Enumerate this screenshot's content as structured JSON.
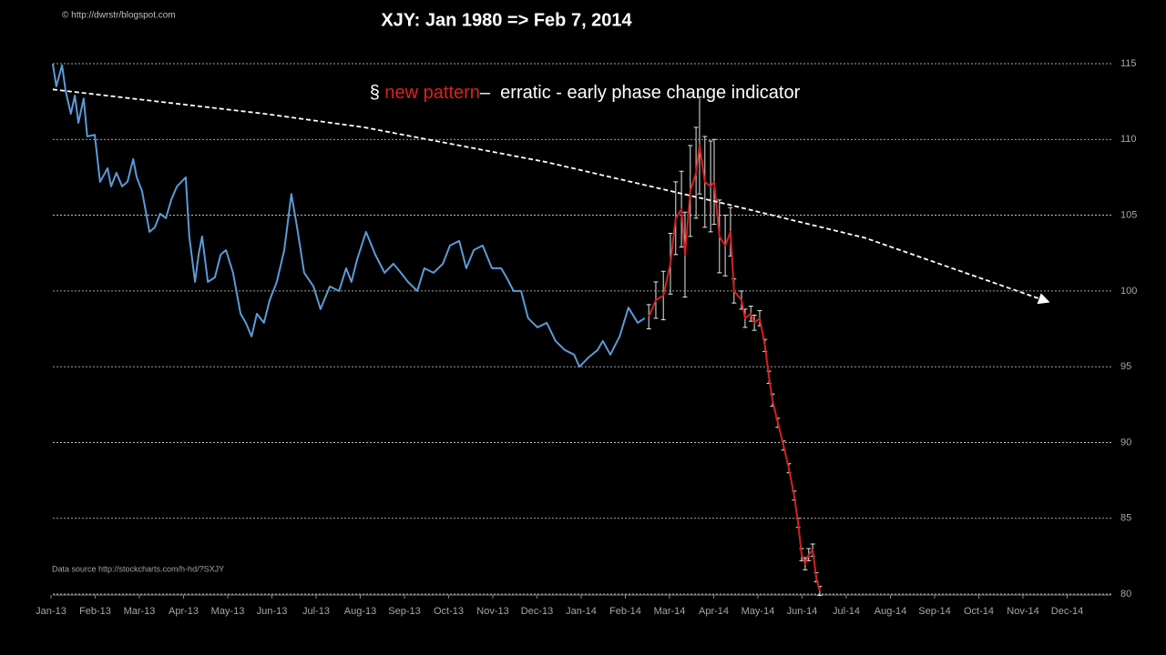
{
  "chart_data": {
    "type": "line",
    "title": "XJY: Jan 1980  => Feb 7, 2014",
    "annotation": [
      "§ ",
      "new pattern",
      "–  erratic - early phase change indicator"
    ],
    "annotation_colors": [
      "#ffffff",
      "#e02020",
      "#ffffff"
    ],
    "copyright": "© http://dwrstr/blogspot.com",
    "source": "Data source http://stockcharts.com/h-hd/?SXJY",
    "xlim": [
      0,
      24
    ],
    "xticks": [
      {
        "value": 0,
        "label": "Jan-13"
      },
      {
        "value": 1,
        "label": "Feb-13"
      },
      {
        "value": 2,
        "label": "Mar-13"
      },
      {
        "value": 3,
        "label": "Apr-13"
      },
      {
        "value": 4,
        "label": "May-13"
      },
      {
        "value": 5,
        "label": "Jun-13"
      },
      {
        "value": 6,
        "label": "Jul-13"
      },
      {
        "value": 7,
        "label": "Aug-13"
      },
      {
        "value": 8,
        "label": "Sep-13"
      },
      {
        "value": 9,
        "label": "Oct-13"
      },
      {
        "value": 10,
        "label": "Nov-13"
      },
      {
        "value": 11,
        "label": "Dec-13"
      },
      {
        "value": 12,
        "label": "Jan-14"
      },
      {
        "value": 13,
        "label": "Feb-14"
      },
      {
        "value": 14,
        "label": "Mar-14"
      },
      {
        "value": 15,
        "label": "Apr-14"
      },
      {
        "value": 16,
        "label": "May-14"
      },
      {
        "value": 17,
        "label": "Jun-14"
      },
      {
        "value": 18,
        "label": "Jul-14"
      },
      {
        "value": 19,
        "label": "Aug-14"
      },
      {
        "value": 20,
        "label": "Sep-14"
      },
      {
        "value": 21,
        "label": "Oct-14"
      },
      {
        "value": 22,
        "label": "Nov-14"
      },
      {
        "value": 23,
        "label": "Dec-14"
      }
    ],
    "ylim": [
      80,
      115
    ],
    "yticks": [
      80,
      85,
      90,
      95,
      100,
      105,
      110,
      115
    ],
    "grid": true,
    "series": [
      {
        "color": "#5b9bd5",
        "style": "solid",
        "x": [
          0.04,
          0.12,
          0.25,
          0.33,
          0.45,
          0.54,
          0.62,
          0.74,
          0.82,
          0.99,
          1.11,
          1.28,
          1.36,
          1.48,
          1.61,
          1.73,
          1.86,
          1.94,
          2.06,
          2.23,
          2.35,
          2.47,
          2.6,
          2.72,
          2.85,
          3.05,
          3.13,
          3.26,
          3.34,
          3.42,
          3.55,
          3.71,
          3.84,
          3.96,
          4.12,
          4.29,
          4.41,
          4.54,
          4.66,
          4.82,
          4.95,
          5.11,
          5.28,
          5.44,
          5.57,
          5.73,
          5.94,
          6.1,
          6.31,
          6.52,
          6.68,
          6.8,
          6.93,
          7.13,
          7.34,
          7.55,
          7.75,
          7.92,
          8.08,
          8.29,
          8.45,
          8.66,
          8.87,
          9.03,
          9.24,
          9.4,
          9.57,
          9.77,
          9.98,
          10.19,
          10.31,
          10.47,
          10.64,
          10.8,
          11.01,
          11.22,
          11.42,
          11.63,
          11.84,
          11.96,
          12.16,
          12.37,
          12.49,
          12.66,
          12.87,
          13.07,
          13.28,
          13.44
        ],
        "values": [
          115,
          113.5,
          114.9,
          113.2,
          111.7,
          112.9,
          111.1,
          112.7,
          110.2,
          110.3,
          107.2,
          108.1,
          106.9,
          107.8,
          106.9,
          107.2,
          108.7,
          107.5,
          106.6,
          103.9,
          104.2,
          105.1,
          104.8,
          106.0,
          106.9,
          107.5,
          103.6,
          100.6,
          102.4,
          103.6,
          100.6,
          100.9,
          102.4,
          102.7,
          101.2,
          98.5,
          97.9,
          97.0,
          98.5,
          97.9,
          99.4,
          100.6,
          102.7,
          106.4,
          104.2,
          101.2,
          100.3,
          98.8,
          100.3,
          100.0,
          101.5,
          100.6,
          102.1,
          103.9,
          102.4,
          101.2,
          101.8,
          101.2,
          100.6,
          100.0,
          101.5,
          101.2,
          101.8,
          103.0,
          103.3,
          101.5,
          102.7,
          103.0,
          101.5,
          101.5,
          100.9,
          100.0,
          100.0,
          98.2,
          97.6,
          97.9,
          96.7,
          96.1,
          95.8,
          95.0,
          95.6,
          96.1,
          96.7,
          95.8,
          97.0,
          98.9,
          97.9,
          98.2
        ]
      },
      {
        "color": "#d42020",
        "style": "solid",
        "error_color": "#e6e6e6",
        "x": [
          13.53,
          13.69,
          13.86,
          14.02,
          14.14,
          14.27,
          14.35,
          14.47,
          14.6,
          14.68,
          14.8,
          14.93,
          15.01,
          15.13,
          15.26,
          15.38,
          15.46,
          15.63,
          15.71,
          15.84,
          15.92,
          16.04,
          16.16,
          16.25,
          16.33,
          16.45,
          16.58,
          16.7,
          16.82,
          16.91,
          16.99,
          17.07,
          17.15,
          17.24,
          17.32,
          17.4
        ],
        "values": [
          98.3,
          99.4,
          99.7,
          101.8,
          104.8,
          105.4,
          102.4,
          106.6,
          107.8,
          109.6,
          107.2,
          106.9,
          107.2,
          103.6,
          103.0,
          103.9,
          100.0,
          99.4,
          98.2,
          98.5,
          97.9,
          98.2,
          96.4,
          94.3,
          92.8,
          91.3,
          89.8,
          88.3,
          86.5,
          84.7,
          82.6,
          82.0,
          82.6,
          82.9,
          81.1,
          80.2
        ],
        "errors": [
          0.8,
          1.2,
          1.6,
          2.0,
          2.4,
          2.5,
          2.8,
          3.0,
          3.0,
          3.2,
          3.0,
          3.0,
          2.8,
          2.4,
          2.0,
          1.6,
          0.8,
          0.6,
          0.6,
          0.5,
          0.5,
          0.5,
          0.4,
          0.4,
          0.4,
          0.3,
          0.3,
          0.3,
          0.3,
          0.3,
          0.4,
          0.4,
          0.4,
          0.4,
          0.3,
          0.3
        ]
      },
      {
        "color": "#ffffff",
        "style": "dashed",
        "arrow": true,
        "x": [
          0.04,
          4.82,
          7.09,
          11.22,
          15.34,
          18.43,
          22.56
        ],
        "values": [
          113.3,
          111.7,
          110.8,
          108.5,
          105.7,
          103.5,
          99.3
        ]
      }
    ]
  }
}
